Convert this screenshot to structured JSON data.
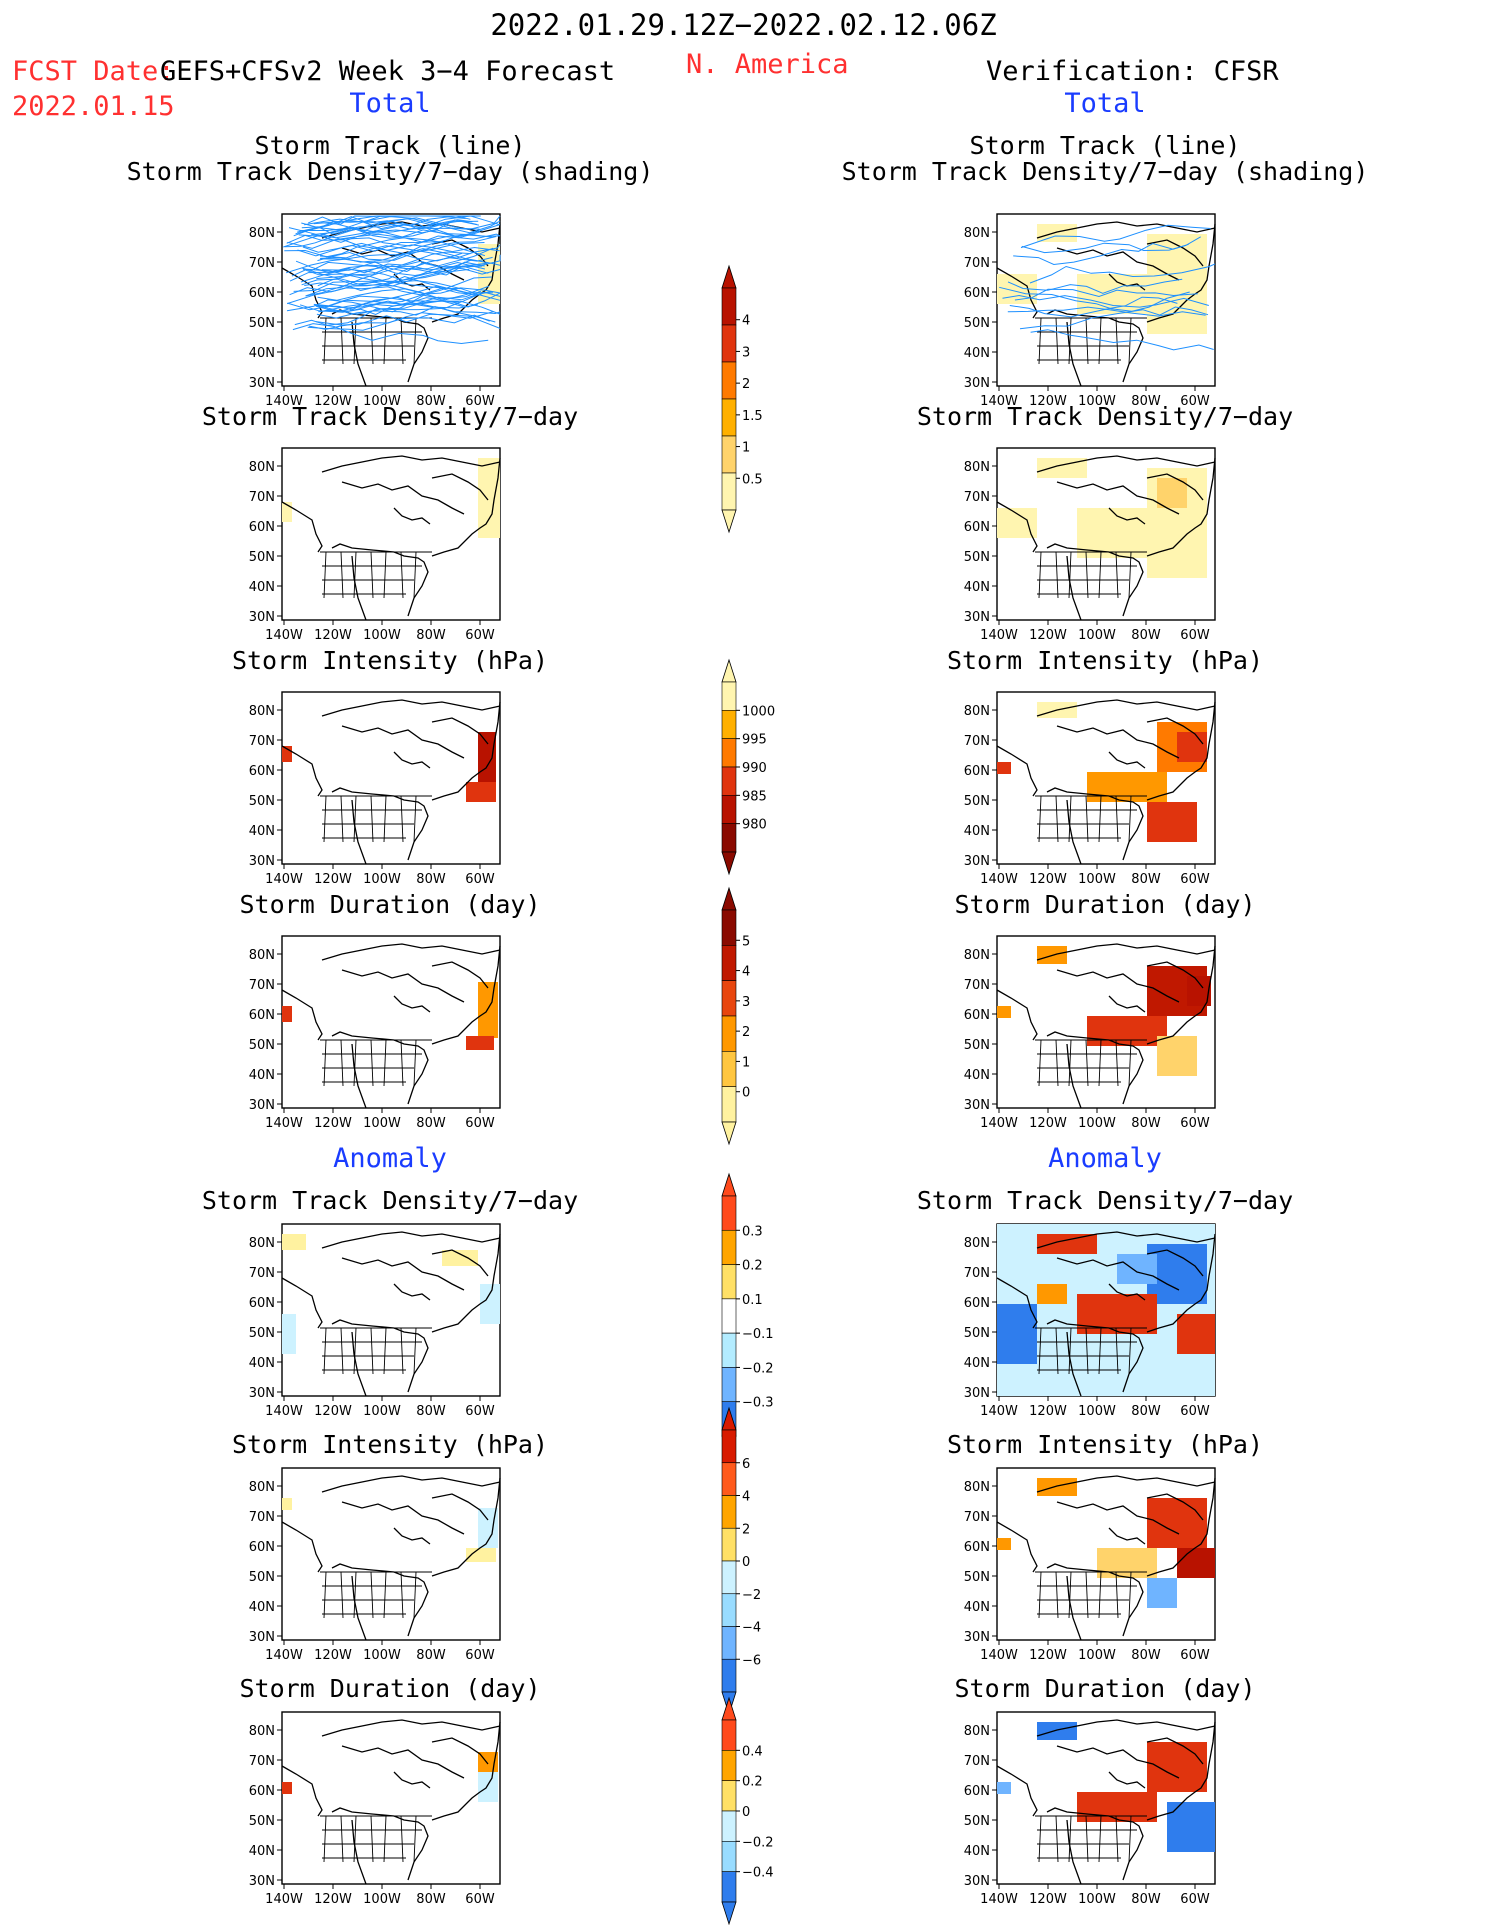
{
  "header": {
    "title": "2022.01.29.12Z−2022.02.12.06Z",
    "fcst_label": "FCST Date:",
    "fcst_date": "2022.01.15",
    "model_label": "GEFS+CFSv2 Week 3−4 Forecast",
    "region": "N. America",
    "verification": "Verification: CFSR",
    "total_left": "Total",
    "total_right": "Total",
    "anomaly_left": "Anomaly",
    "anomaly_right": "Anomaly"
  },
  "colors": {
    "title_red": "#ff3030",
    "label_blue": "#1a3cff",
    "track_line": "#1e90ff"
  },
  "panel_titles": {
    "storm_track_line": "Storm Track (line)",
    "storm_track_shading": "Storm Track Density/7−day (shading)",
    "density": "Storm Track Density/7−day",
    "intensity": "Storm Intensity (hPa)",
    "duration": "Storm Duration (day)"
  },
  "chart_data": [
    {
      "type": "heatmap",
      "panel": "forecast-total-track",
      "title": "Storm Track (line) / Storm Track Density/7−day (shading)",
      "xticks": [
        "140W",
        "120W",
        "100W",
        "80W",
        "60W"
      ],
      "yticks": [
        "80N",
        "70N",
        "60N",
        "50N",
        "40N",
        "30N"
      ]
    },
    {
      "type": "heatmap",
      "panel": "verification-total-track",
      "title": "Storm Track (line) / Storm Track Density/7−day (shading)",
      "xticks": [
        "140W",
        "120W",
        "100W",
        "80W",
        "60W"
      ],
      "yticks": [
        "80N",
        "70N",
        "60N",
        "50N",
        "40N",
        "30N"
      ]
    }
  ],
  "colorbars": {
    "density": {
      "labels": [
        "4",
        "3",
        "2",
        "1.5",
        "1",
        "0.5"
      ],
      "colors": [
        "#b81200",
        "#e0340e",
        "#ff7a00",
        "#ffb000",
        "#ffd36b",
        "#fff5b0"
      ]
    },
    "intensity": {
      "labels": [
        "1000",
        "995",
        "990",
        "985",
        "980"
      ],
      "colors": [
        "#fff5b0",
        "#ffb000",
        "#ff7a00",
        "#e0340e",
        "#b81200",
        "#8a0a00"
      ]
    },
    "duration": {
      "labels": [
        "5",
        "4",
        "3",
        "2",
        "1",
        "0"
      ],
      "colors": [
        "#8a0a00",
        "#c01800",
        "#e8460e",
        "#ff9800",
        "#ffc640",
        "#fff2a0"
      ]
    },
    "anom_density": {
      "labels": [
        "0.3",
        "0.2",
        "0.1",
        "−0.1",
        "−0.2",
        "−0.3"
      ],
      "colors": [
        "#ff4a1c",
        "#ffa500",
        "#ffe066",
        "#ffffff",
        "#b3ecff",
        "#6fb4ff",
        "#2f7ded"
      ]
    },
    "anom_intensity": {
      "labels": [
        "6",
        "4",
        "2",
        "0",
        "−2",
        "−4",
        "−6"
      ],
      "colors": [
        "#d81a00",
        "#ff5a1c",
        "#ffa500",
        "#ffe066",
        "#cdf2ff",
        "#99dcff",
        "#6fb4ff",
        "#2f7ded"
      ]
    },
    "anom_duration": {
      "labels": [
        "0.4",
        "0.2",
        "0",
        "−0.2",
        "−0.4"
      ],
      "colors": [
        "#ff4a1c",
        "#ffa500",
        "#ffe066",
        "#cdf2ff",
        "#99dcff",
        "#2f7ded"
      ]
    }
  },
  "axes": {
    "xticks": [
      "140W",
      "120W",
      "100W",
      "80W",
      "60W"
    ],
    "yticks": [
      "80N",
      "70N",
      "60N",
      "50N",
      "40N",
      "30N"
    ]
  }
}
